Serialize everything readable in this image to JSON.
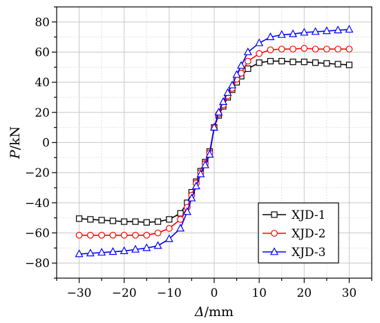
{
  "chart_data": {
    "type": "line",
    "title": "",
    "xlabel": "Δ/mm",
    "ylabel": "P/kN",
    "xlabel_parts": {
      "symbol": "Δ",
      "unit": "/mm"
    },
    "ylabel_parts": {
      "symbol": "P",
      "unit": "/kN"
    },
    "xlim": [
      -35,
      35
    ],
    "ylim": [
      -90,
      90
    ],
    "xticks": [
      -30,
      -20,
      -10,
      0,
      10,
      20,
      30
    ],
    "yticks": [
      -80,
      -60,
      -40,
      -20,
      0,
      20,
      40,
      60,
      80
    ],
    "grid": true,
    "legend_position": "bottom-right",
    "series": [
      {
        "name": "XJD-1",
        "color": "#000000",
        "marker": "square",
        "x": [
          -30,
          -27.5,
          -25,
          -22.5,
          -20,
          -17.5,
          -15,
          -12.5,
          -10,
          -7.5,
          -6,
          -5,
          -4,
          -3,
          -2,
          -1,
          0,
          1,
          2,
          3,
          4,
          5,
          6,
          7.5,
          10,
          12.5,
          15,
          17.5,
          20,
          22.5,
          25,
          27.5,
          30
        ],
        "y": [
          -50.5,
          -51,
          -51.5,
          -52,
          -52.5,
          -52.5,
          -53,
          -52.5,
          -51,
          -47,
          -40,
          -33,
          -26,
          -19,
          -13,
          -6,
          10,
          18,
          24,
          30,
          35,
          40,
          44,
          49,
          53,
          54,
          54,
          53.5,
          53.5,
          53,
          52.5,
          52,
          51.5
        ]
      },
      {
        "name": "XJD-2",
        "color": "#ff0000",
        "marker": "circle",
        "x": [
          -30,
          -27.5,
          -25,
          -22.5,
          -20,
          -17.5,
          -15,
          -12.5,
          -10,
          -7.5,
          -6,
          -5,
          -4,
          -3,
          -2,
          -1,
          0,
          1,
          2,
          3,
          4,
          5,
          6,
          7.5,
          10,
          12.5,
          15,
          17.5,
          20,
          22.5,
          25,
          27.5,
          30
        ],
        "y": [
          -61.5,
          -61.5,
          -61.5,
          -61.5,
          -61.5,
          -61.5,
          -61.5,
          -60,
          -57,
          -51,
          -43,
          -35,
          -27,
          -20,
          -14,
          -7,
          10,
          19,
          25,
          31,
          36,
          42,
          46,
          54,
          59,
          61.5,
          62,
          62,
          62.5,
          62,
          62,
          62,
          62
        ]
      },
      {
        "name": "XJD-3",
        "color": "#0000ff",
        "marker": "triangle",
        "x": [
          -30,
          -27.5,
          -25,
          -22.5,
          -20,
          -17.5,
          -15,
          -12.5,
          -10,
          -7.5,
          -6,
          -5,
          -4,
          -3,
          -2,
          -1,
          0,
          1,
          2,
          3,
          4,
          5,
          6,
          7.5,
          10,
          12.5,
          15,
          17.5,
          20,
          22.5,
          25,
          27.5,
          30
        ],
        "y": [
          -74,
          -73.5,
          -73,
          -72.5,
          -72,
          -71,
          -70,
          -68.5,
          -64,
          -57,
          -46,
          -37,
          -29,
          -21,
          -15,
          -8,
          10,
          20,
          27,
          33,
          38,
          45,
          51,
          60,
          66,
          70,
          71.5,
          72,
          73,
          73.5,
          74,
          74.5,
          75
        ]
      }
    ]
  }
}
